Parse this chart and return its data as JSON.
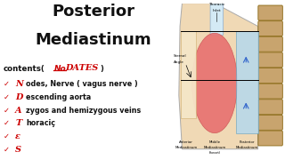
{
  "bg_color": "#ffffff",
  "title_line1": "Posterior",
  "title_line2": "Mediastinum",
  "text_color_black": "#111111",
  "text_color_red": "#cc0000",
  "items": [
    {
      "letter": "N",
      "rest": "odes, Nerve ( vagus nerve )"
    },
    {
      "letter": "D",
      "rest": "escending aorta"
    },
    {
      "letter": "A",
      "rest": "zygos and hemizygous veins"
    },
    {
      "letter": "T",
      "rest": "horaciç"
    },
    {
      "letter": "ε",
      "rest": ""
    },
    {
      "letter": "S",
      "rest": ""
    }
  ],
  "spine_color": "#c8a46e",
  "spine_edge": "#8B6914",
  "body_color": "#f0d9b5",
  "heart_color": "#e87070",
  "ant_color": "#f5e6c8",
  "post_color": "#b8d8ea",
  "trachea_color": "#d4eaf5"
}
